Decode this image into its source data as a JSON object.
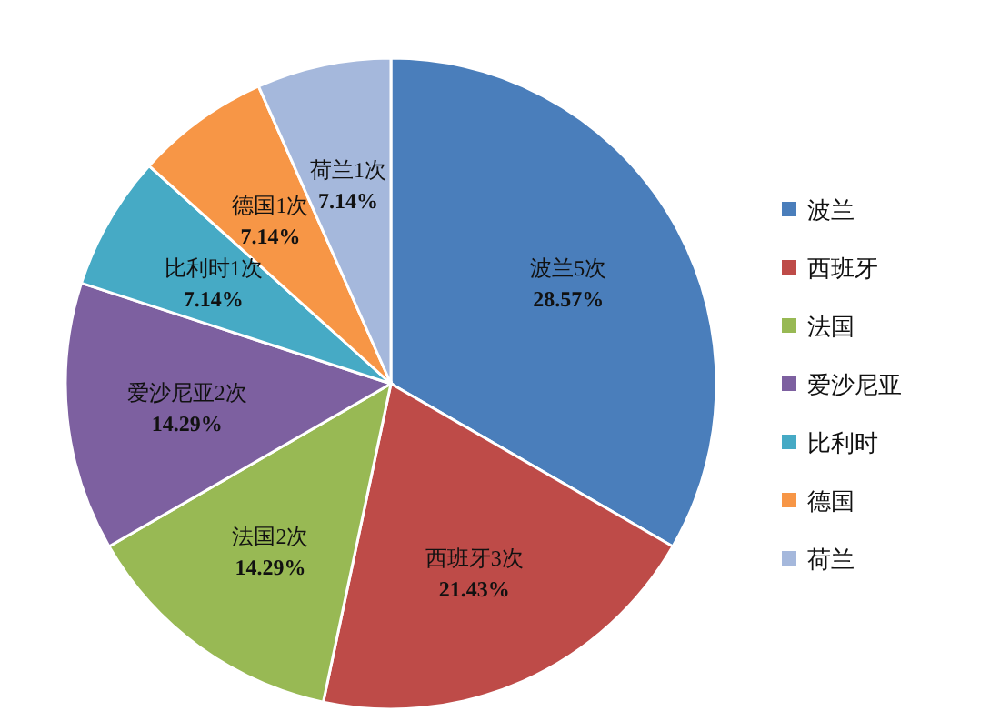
{
  "chart_data": {
    "type": "pie",
    "categories": [
      "波兰",
      "西班牙",
      "法国",
      "爱沙尼亚",
      "比利时",
      "德国",
      "荷兰"
    ],
    "values": [
      5,
      3,
      2,
      2,
      1,
      1,
      1
    ],
    "value_labels": [
      "波兰5次\n28.57%",
      "西班牙3次\n21.43%",
      "法国2次\n14.29%",
      "爱沙尼亚2次\n14.29%",
      "比利时1次\n7.14%",
      "德国1次\n7.14%",
      "荷兰1次\n7.14%"
    ],
    "colors": [
      "#4a7ebb",
      "#be4b48",
      "#98b954",
      "#7d60a0",
      "#46aac5",
      "#f79646",
      "#a5b8dc"
    ],
    "legend": "right"
  }
}
